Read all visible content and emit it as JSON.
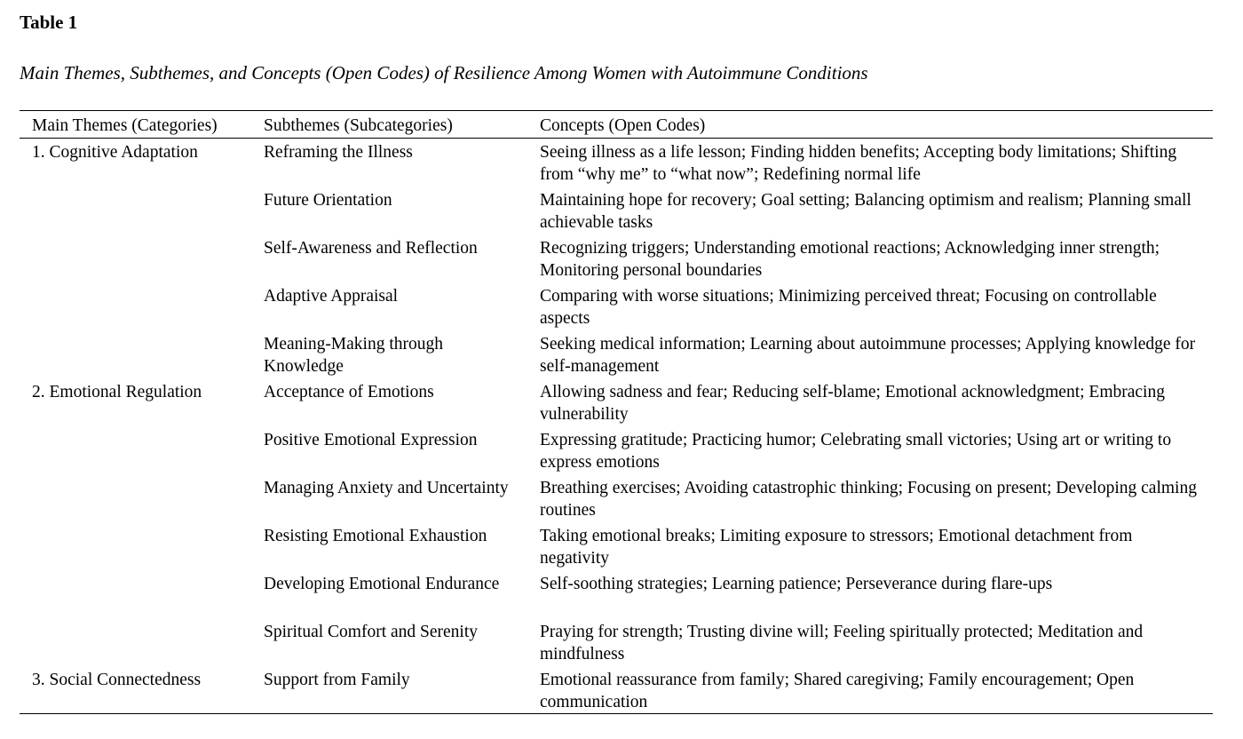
{
  "title": "Table 1",
  "subtitle": "Main Themes, Subthemes, and Concepts (Open Codes) of Resilience Among Women with Autoimmune Conditions",
  "headers": [
    "Main Themes (Categories)",
    "Subthemes (Subcategories)",
    "Concepts (Open Codes)"
  ],
  "rows": [
    {
      "theme": "1. Cognitive Adaptation",
      "subtheme": "Reframing the Illness",
      "concepts": "Seeing illness as a life lesson; Finding hidden benefits; Accepting body limitations; Shifting from “why me” to “what now”; Redefining normal life"
    },
    {
      "theme": "",
      "subtheme": "Future Orientation",
      "concepts": "Maintaining hope for recovery; Goal setting; Balancing optimism and realism; Planning small achievable tasks"
    },
    {
      "theme": "",
      "subtheme": "Self-Awareness and Reflection",
      "concepts": "Recognizing triggers; Understanding emotional reactions; Acknowledging inner strength; Monitoring personal boundaries"
    },
    {
      "theme": "",
      "subtheme": "Adaptive Appraisal",
      "concepts": "Comparing with worse situations; Minimizing perceived threat; Focusing on controllable aspects"
    },
    {
      "theme": "",
      "subtheme": "Meaning-Making through Knowledge",
      "concepts": "Seeking medical information; Learning about autoimmune processes; Applying knowledge for self-management"
    },
    {
      "theme": "2. Emotional Regulation",
      "subtheme": "Acceptance of Emotions",
      "concepts": "Allowing sadness and fear; Reducing self-blame; Emotional acknowledgment; Embracing vulnerability"
    },
    {
      "theme": "",
      "subtheme": "Positive Emotional Expression",
      "concepts": "Expressing gratitude; Practicing humor; Celebrating small victories; Using art or writing to express emotions"
    },
    {
      "theme": "",
      "subtheme": "Managing Anxiety and Uncertainty",
      "concepts": "Breathing exercises; Avoiding catastrophic thinking; Focusing on present; Developing calming routines"
    },
    {
      "theme": "",
      "subtheme": "Resisting Emotional Exhaustion",
      "concepts": "Taking emotional breaks; Limiting exposure to stressors; Emotional detachment from negativity"
    },
    {
      "theme": "",
      "subtheme": "Developing Emotional Endurance",
      "concepts": "Self-soothing strategies; Learning patience; Perseverance during flare-ups"
    },
    {
      "theme": "",
      "subtheme": "Spiritual Comfort and Serenity",
      "concepts": "Praying for strength; Trusting divine will; Feeling spiritually protected; Meditation and mindfulness"
    },
    {
      "theme": "3. Social Connectedness",
      "subtheme": "Support from Family",
      "concepts": "Emotional reassurance from family; Shared caregiving; Family encouragement; Open communication"
    }
  ]
}
